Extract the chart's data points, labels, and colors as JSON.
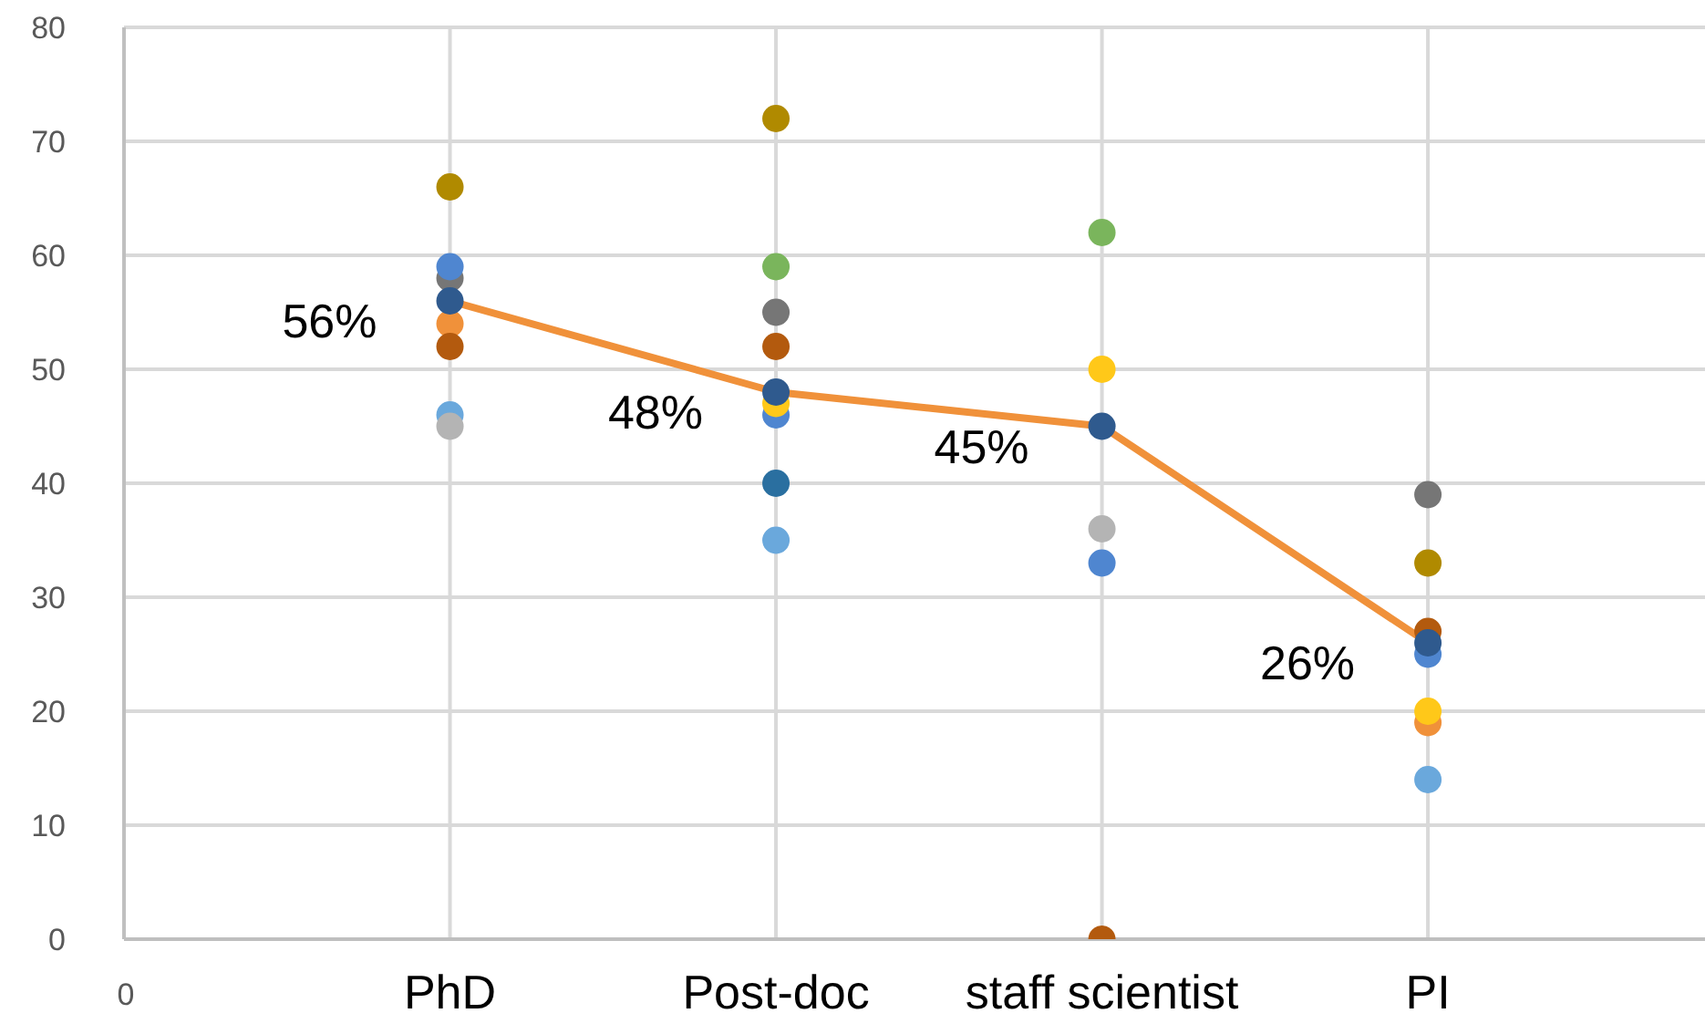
{
  "chart_data": {
    "type": "scatter",
    "categories": [
      "PhD",
      "Post-doc",
      "staff scientist",
      "PI"
    ],
    "annotations": [
      "0"
    ],
    "ylim": [
      0,
      80
    ],
    "yticks": [
      0,
      10,
      20,
      30,
      40,
      50,
      60,
      70,
      80
    ],
    "grid": true,
    "marker": "circle",
    "series": [
      {
        "color": "#b08a00",
        "values": [
          66,
          72,
          null,
          33
        ]
      },
      {
        "color": "#767676",
        "values": [
          58,
          55,
          null,
          39
        ]
      },
      {
        "color": "#4f86d0",
        "values": [
          59,
          46,
          33,
          25
        ]
      },
      {
        "color": "#f0913a",
        "values": [
          54,
          null,
          null,
          19
        ]
      },
      {
        "color": "#b35a0e",
        "values": [
          52,
          52,
          0,
          27
        ]
      },
      {
        "color": "#6aa8dc",
        "values": [
          46,
          35,
          null,
          14
        ]
      },
      {
        "color": "#b4b4b4",
        "values": [
          45,
          null,
          36,
          null
        ]
      },
      {
        "color": "#7ab55c",
        "values": [
          null,
          59,
          62,
          null
        ]
      },
      {
        "color": "#ffc819",
        "values": [
          null,
          47,
          50,
          20
        ]
      },
      {
        "color": "#2a6fa0",
        "values": [
          null,
          40,
          null,
          null
        ]
      },
      {
        "color": "#2f5a8e",
        "values": [
          56,
          48,
          45,
          26
        ]
      },
      {
        "type": "line",
        "color": "#f0913a",
        "marker": "none",
        "line_style": "solid",
        "values": [
          56,
          48,
          45,
          26
        ],
        "value_labels": [
          "56%",
          "48%",
          "45%",
          "26%"
        ]
      }
    ]
  }
}
